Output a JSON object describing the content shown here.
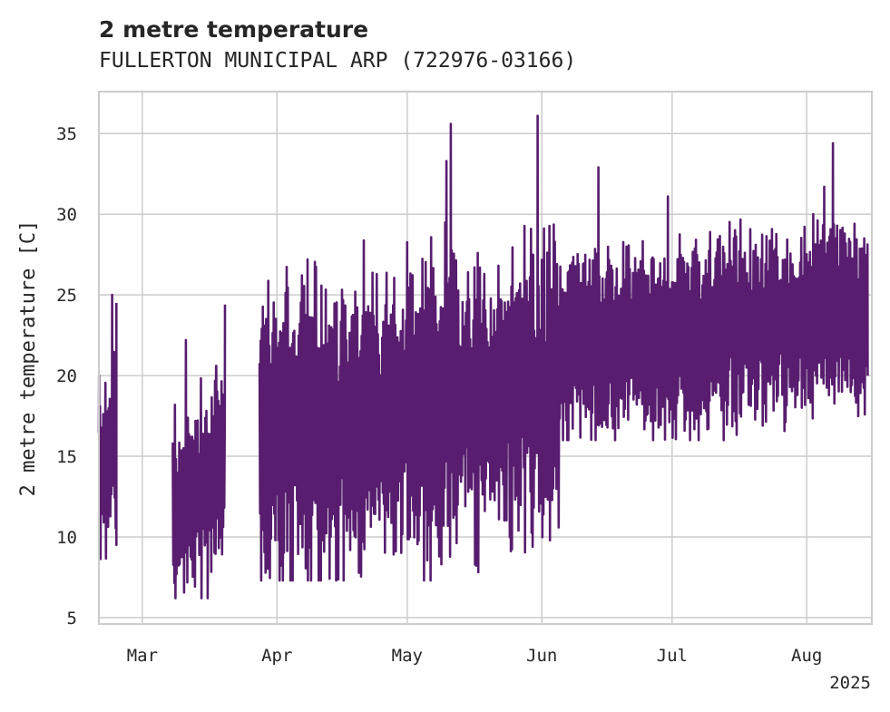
{
  "chart_data": {
    "type": "line",
    "title": "2 metre temperature",
    "subtitle": "FULLERTON MUNICIPAL ARP (722976-03166)",
    "xlabel": "",
    "ylabel": "2 metre temperature [C]",
    "xlim": [
      "2025-02-19",
      "2025-08-16"
    ],
    "ylim": [
      4.6,
      37.6
    ],
    "x_ticks": [
      {
        "date": "2025-03-01",
        "label": "Mar"
      },
      {
        "date": "2025-04-01",
        "label": "Apr"
      },
      {
        "date": "2025-05-01",
        "label": "May"
      },
      {
        "date": "2025-06-01",
        "label": "Jun"
      },
      {
        "date": "2025-07-01",
        "label": "Jul"
      },
      {
        "date": "2025-08-01",
        "label": "Aug"
      }
    ],
    "x_offset_label": "2025",
    "y_ticks": [
      5,
      10,
      15,
      20,
      25,
      30,
      35
    ],
    "grid": true,
    "color": "#581d6f",
    "series": [
      {
        "name": "",
        "segments": [
          {
            "start": "2025-02-19",
            "end": "2025-02-23",
            "min": 8.5,
            "max": 25.0
          },
          {
            "start": "2025-03-08",
            "end": "2025-03-20",
            "min": 6.2,
            "max": 24.5
          },
          {
            "start": "2025-03-28",
            "end": "2025-06-05",
            "min": 7.3,
            "max": 36.1
          },
          {
            "start": "2025-06-05",
            "end": "2025-08-15",
            "min": 16.0,
            "max": 34.4
          }
        ],
        "peaks": [
          {
            "date": "2025-02-19",
            "value": 20.0
          },
          {
            "date": "2025-02-22",
            "value": 25.0
          },
          {
            "date": "2025-02-23",
            "value": 9.5
          },
          {
            "date": "2025-02-23",
            "value": 24.5
          },
          {
            "date": "2025-03-11",
            "value": 22.2
          },
          {
            "date": "2025-03-16",
            "value": 6.2
          },
          {
            "date": "2025-03-18",
            "value": 20.6
          },
          {
            "date": "2025-03-20",
            "value": 24.4
          },
          {
            "date": "2025-04-08",
            "value": 27.2
          },
          {
            "date": "2025-04-19",
            "value": 25.2
          },
          {
            "date": "2025-05-10",
            "value": 33.3
          },
          {
            "date": "2025-05-11",
            "value": 35.6
          },
          {
            "date": "2025-05-15",
            "value": 12.8
          },
          {
            "date": "2025-05-31",
            "value": 36.1
          },
          {
            "date": "2025-06-14",
            "value": 32.9
          },
          {
            "date": "2025-06-30",
            "value": 31.1
          },
          {
            "date": "2025-08-05",
            "value": 31.7
          },
          {
            "date": "2025-08-07",
            "value": 34.4
          },
          {
            "date": "2025-08-15",
            "value": 20.0
          }
        ]
      }
    ]
  }
}
